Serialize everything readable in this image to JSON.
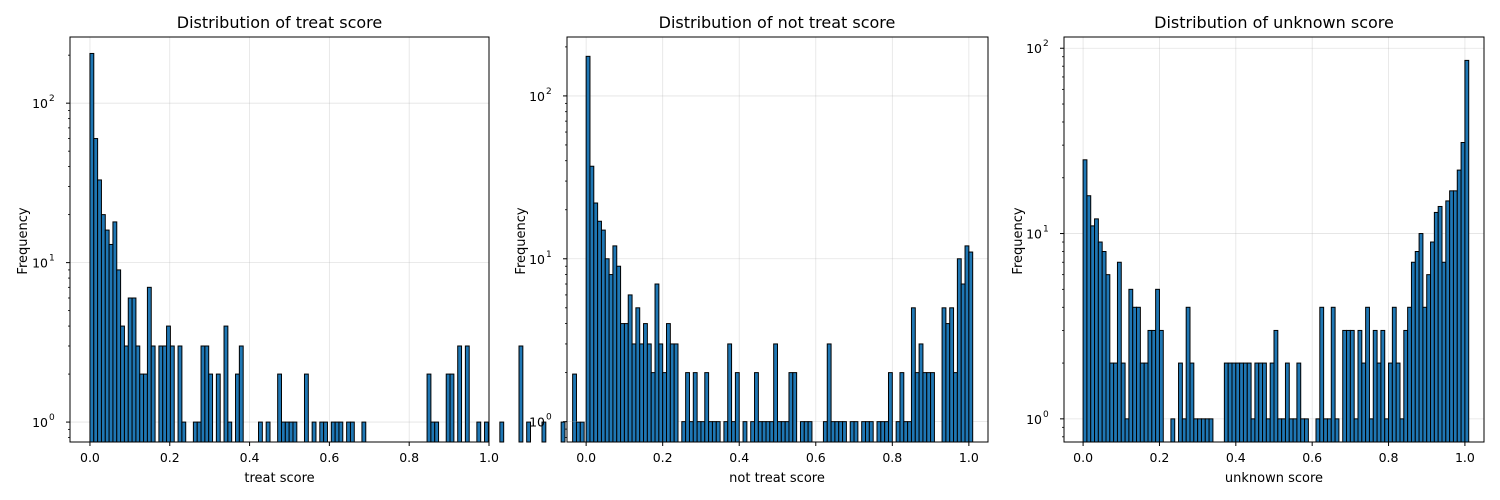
{
  "chart_data": [
    {
      "type": "bar",
      "title": "Distribution of treat score",
      "xlabel": "treat score",
      "ylabel": "Frequency",
      "yscale": "log",
      "ylim": [
        0.75,
        260
      ],
      "xlim": [
        -0.05,
        1.0
      ],
      "x_ticks": [
        0.0,
        0.2,
        0.4,
        0.6,
        0.8,
        1.0
      ],
      "x_tick_labels": [
        "0.0",
        "0.2",
        "0.4",
        "0.6",
        "0.8",
        "1.0"
      ],
      "y_ticks": [
        1,
        10,
        100
      ],
      "y_tick_labels": [
        "10",
        "10",
        "10"
      ],
      "y_tick_exponents": [
        "0",
        "1",
        "2"
      ],
      "bin_width": 0.0096,
      "bin_start": 0.0,
      "counts": [
        205,
        60,
        33,
        20,
        16,
        13,
        18,
        9,
        4,
        3,
        6,
        6,
        3,
        2,
        2,
        7,
        3,
        0,
        3,
        3,
        4,
        3,
        0,
        3,
        1,
        0,
        0,
        1,
        1,
        3,
        3,
        2,
        0,
        2,
        0,
        4,
        1,
        0,
        2,
        3,
        0,
        0,
        0,
        0,
        1,
        0,
        1,
        0,
        0,
        2,
        1,
        1,
        1,
        1,
        0,
        0,
        2,
        0,
        1,
        0,
        1,
        1,
        0,
        1,
        1,
        1,
        0,
        1,
        1,
        0,
        0,
        1,
        0,
        0,
        0,
        0,
        0,
        0,
        0,
        0,
        0,
        0,
        0,
        0,
        0,
        0,
        0,
        0,
        2,
        1,
        1,
        0,
        0,
        2,
        2,
        0,
        3,
        0,
        3,
        0,
        0,
        1,
        0,
        1,
        0,
        0,
        0,
        1,
        0,
        0,
        0,
        0,
        3,
        0,
        1,
        0,
        0,
        0,
        1,
        0,
        0,
        0,
        0,
        1,
        0,
        0,
        2,
        1,
        1,
        0,
        0,
        0,
        1,
        0,
        0,
        0,
        0,
        0,
        0,
        0,
        0,
        0,
        0,
        1,
        0,
        0,
        0,
        0,
        0,
        0,
        0
      ],
      "grid": true
    },
    {
      "type": "bar",
      "title": "Distribution of not treat score",
      "xlabel": "not treat score",
      "ylabel": "Frequency",
      "yscale": "log",
      "ylim": [
        0.75,
        230
      ],
      "xlim": [
        -0.05,
        1.05
      ],
      "x_ticks": [
        0.0,
        0.2,
        0.4,
        0.6,
        0.8,
        1.0
      ],
      "x_tick_labels": [
        "0.0",
        "0.2",
        "0.4",
        "0.6",
        "0.8",
        "1.0"
      ],
      "y_ticks": [
        1,
        10,
        100
      ],
      "y_tick_labels": [
        "10",
        "10",
        "10"
      ],
      "y_tick_exponents": [
        "0",
        "1",
        "2"
      ],
      "bin_width": 0.01,
      "bin_start": 0.0,
      "counts": [
        175,
        37,
        22,
        17,
        15,
        10,
        8,
        12,
        9,
        4,
        4,
        6,
        3,
        5,
        3,
        4,
        3,
        2,
        7,
        3,
        2,
        4,
        3,
        3,
        0,
        1,
        2,
        1,
        2,
        1,
        1,
        2,
        1,
        1,
        1,
        0,
        1,
        3,
        1,
        2,
        0,
        1,
        0,
        1,
        2,
        1,
        1,
        1,
        1,
        3,
        1,
        1,
        1,
        2,
        2,
        0,
        1,
        1,
        1,
        0,
        0,
        0,
        1,
        3,
        1,
        1,
        1,
        1,
        0,
        1,
        1,
        0,
        1,
        1,
        1,
        0,
        1,
        1,
        1,
        2,
        0,
        1,
        2,
        1,
        1,
        5,
        2,
        3,
        2,
        2,
        2,
        0,
        0,
        5,
        4,
        5,
        2,
        10,
        7,
        12,
        11
      ],
      "grid": true
    },
    {
      "type": "bar",
      "title": "Distribution of unknown score",
      "xlabel": "unknown score",
      "ylabel": "Frequency",
      "yscale": "log",
      "ylim": [
        0.75,
        115
      ],
      "xlim": [
        -0.05,
        1.05
      ],
      "x_ticks": [
        0.0,
        0.2,
        0.4,
        0.6,
        0.8,
        1.0
      ],
      "x_tick_labels": [
        "0.0",
        "0.2",
        "0.4",
        "0.6",
        "0.8",
        "1.0"
      ],
      "y_ticks": [
        1,
        10,
        100
      ],
      "y_tick_labels": [
        "10",
        "10",
        "10"
      ],
      "y_tick_exponents": [
        "0",
        "1",
        "2"
      ],
      "bin_width": 0.01,
      "bin_start": 0.0,
      "counts": [
        25,
        16,
        11,
        12,
        9,
        8,
        6,
        2,
        2,
        7,
        2,
        1,
        5,
        4,
        4,
        2,
        2,
        3,
        3,
        5,
        3,
        0,
        0,
        1,
        0,
        2,
        1,
        4,
        2,
        1,
        1,
        1,
        1,
        1,
        0,
        0,
        0,
        2,
        2,
        2,
        2,
        2,
        2,
        2,
        1,
        2,
        2,
        2,
        1,
        2,
        3,
        1,
        1,
        2,
        1,
        1,
        2,
        1,
        1,
        0,
        0,
        1,
        4,
        1,
        1,
        4,
        1,
        0,
        3,
        3,
        3,
        1,
        3,
        2,
        4,
        1,
        3,
        2,
        3,
        1,
        2,
        4,
        2,
        1,
        3,
        4,
        7,
        8,
        10,
        4,
        6,
        9,
        13,
        14,
        7,
        15,
        17,
        17,
        22,
        31,
        86
      ],
      "grid": true
    }
  ]
}
